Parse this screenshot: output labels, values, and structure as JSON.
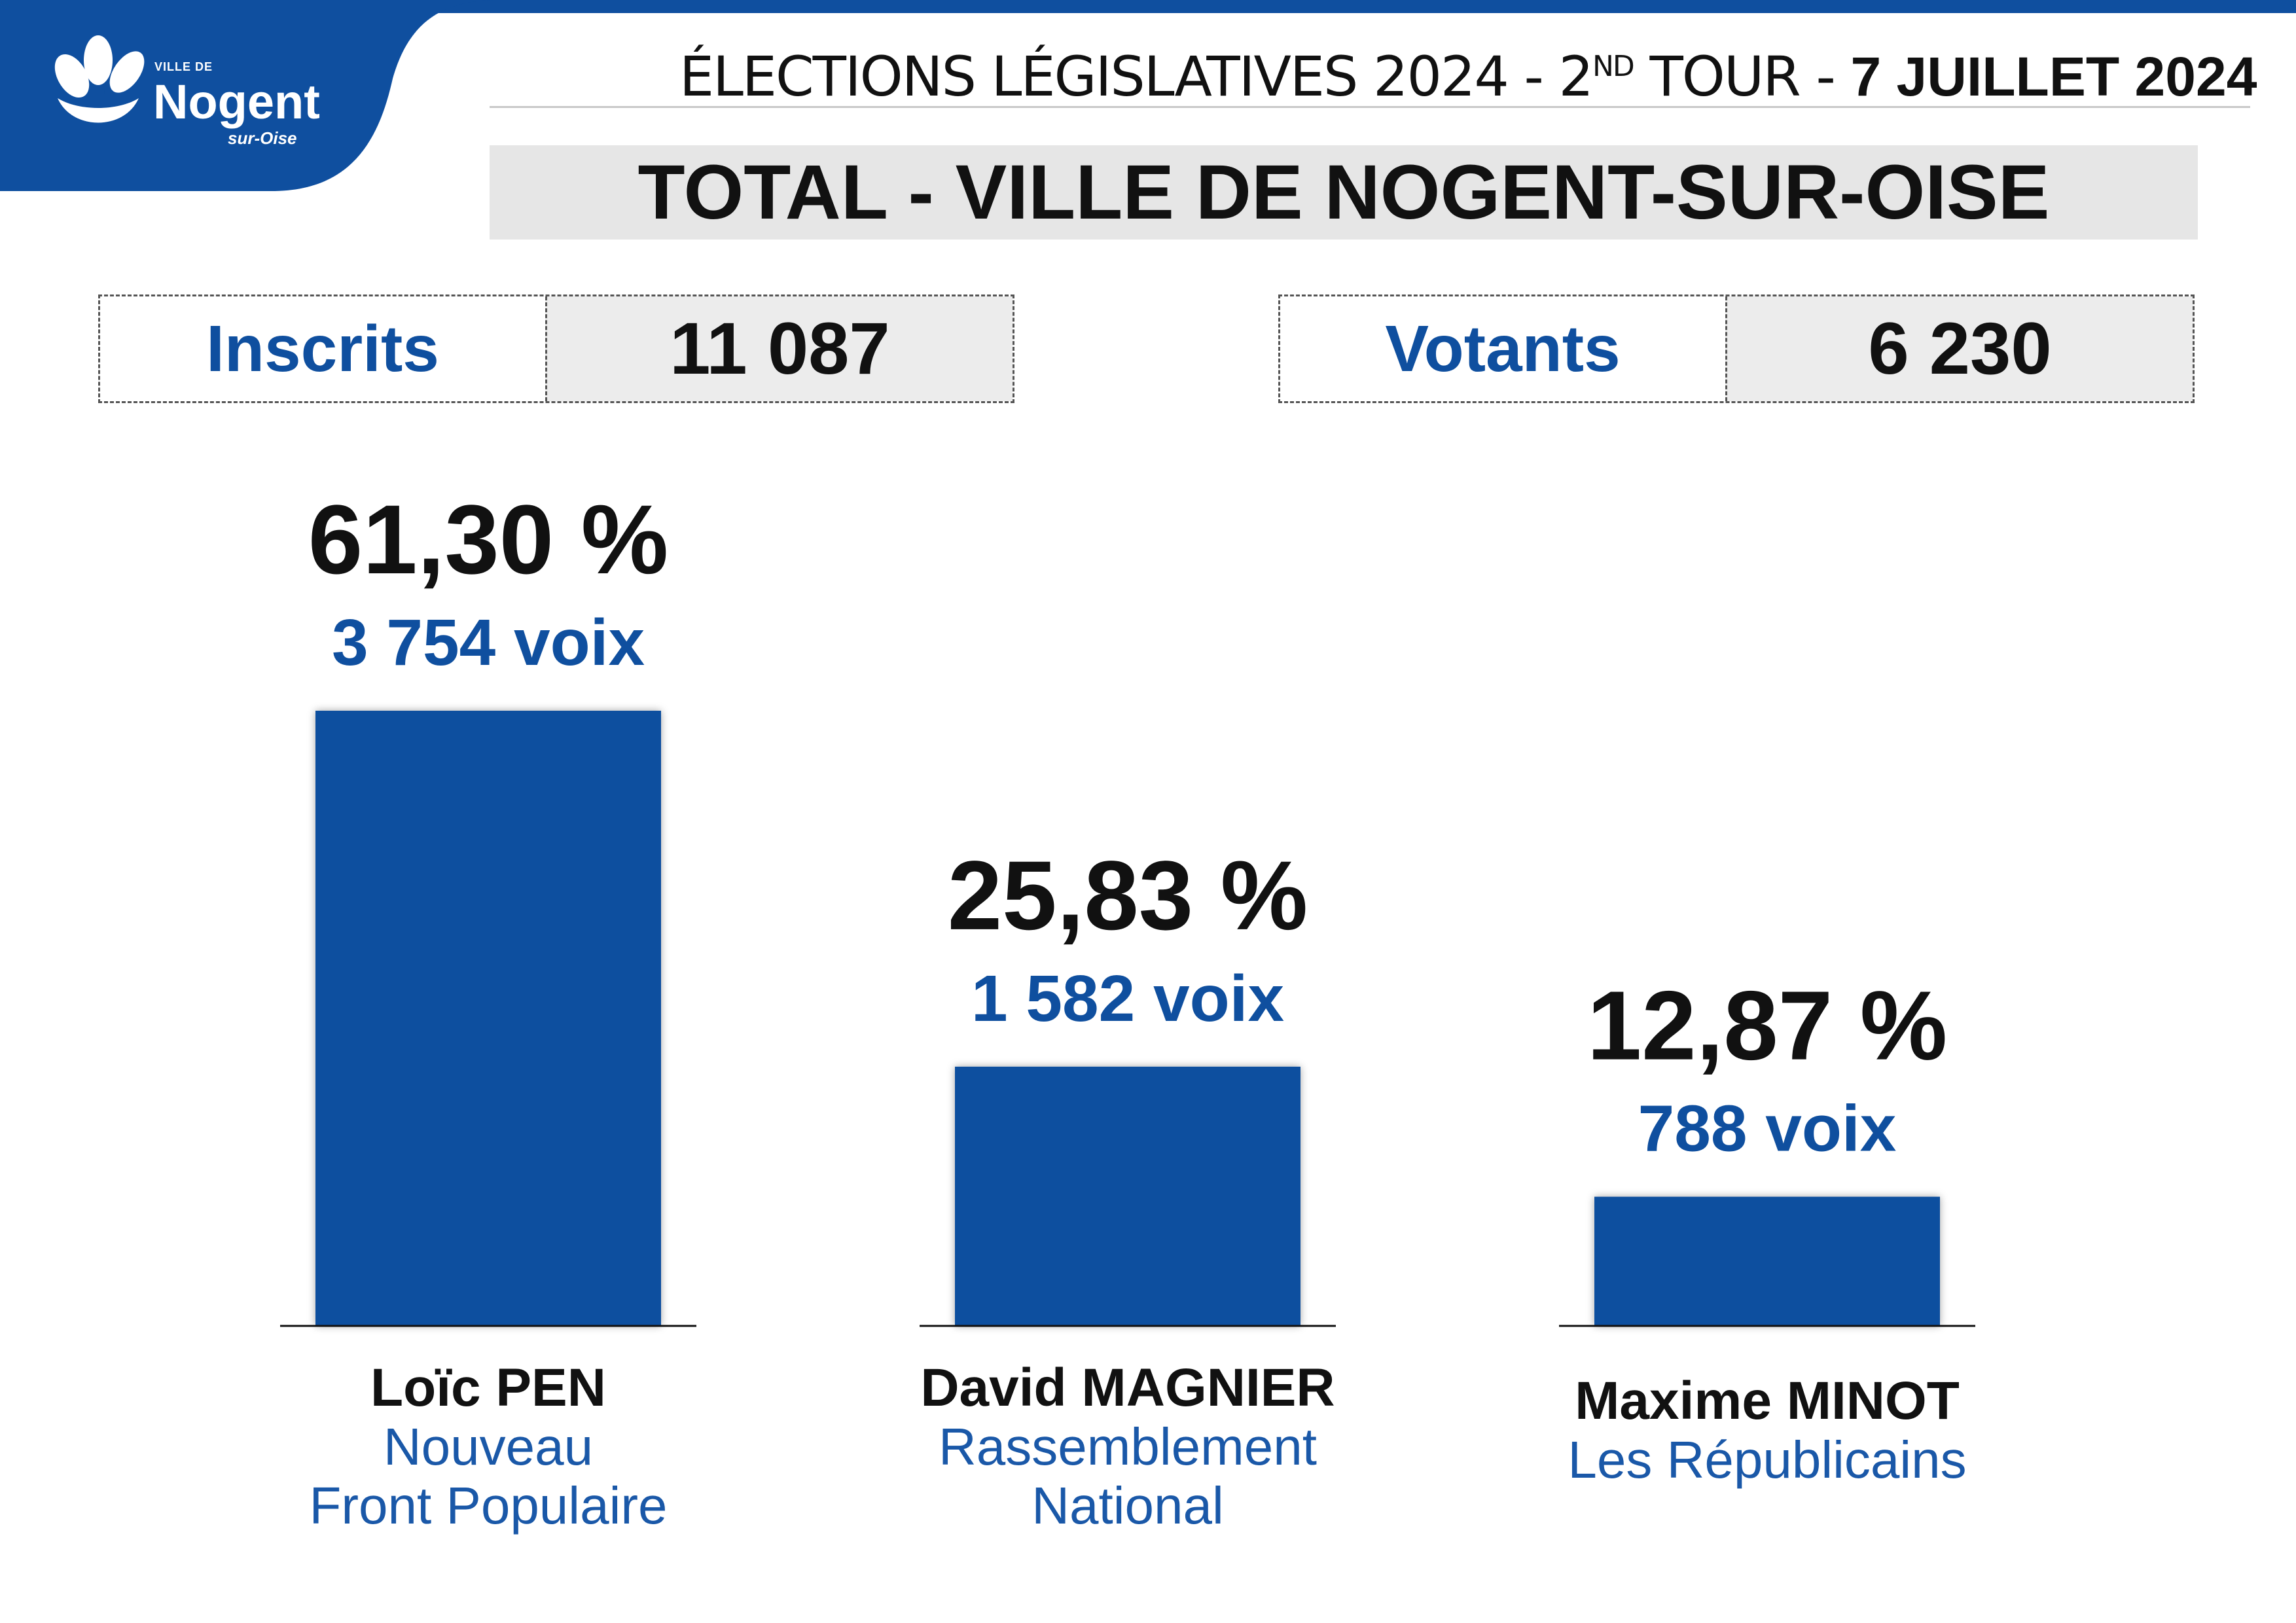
{
  "header": {
    "title_main": "ÉLECTIONS LÉGISLATIVES 2024 - 2",
    "title_sup": "ND",
    "title_mid": " TOUR - ",
    "title_date": "7 JUILLET 2024",
    "banner": "TOTAL - VILLE DE NOGENT-SUR-OISE"
  },
  "logo": {
    "small": "VILLE DE",
    "name": "Nogent",
    "sub": "sur-Oise"
  },
  "stats": {
    "inscrits_label": "Inscrits",
    "inscrits_value": "11 087",
    "votants_label": "Votants",
    "votants_value": "6 230"
  },
  "colors": {
    "brand_blue": "#0f4f9f",
    "text_dark": "#111111"
  },
  "chart_data": {
    "type": "bar",
    "title": "TOTAL - VILLE DE NOGENT-SUR-OISE",
    "categories": [
      "Loïc PEN",
      "David MAGNIER",
      "Maxime MINOT"
    ],
    "values": [
      61.3,
      25.83,
      12.87
    ],
    "ylim": [
      0,
      61.3
    ],
    "bars": [
      {
        "percent": 61.3,
        "percent_label": "61,30 %",
        "votes_label": "3 754 voix",
        "name": "Loïc PEN",
        "party_lines": [
          "Nouveau",
          "Front Populaire"
        ]
      },
      {
        "percent": 25.83,
        "percent_label": "25,83 %",
        "votes_label": "1 582 voix",
        "name": "David MAGNIER",
        "party_lines": [
          "Rassemblement",
          "National"
        ]
      },
      {
        "percent": 12.87,
        "percent_label": "12,87 %",
        "votes_label": "788 voix",
        "name": "Maxime MINOT",
        "party_lines": [
          "Les Républicains"
        ]
      }
    ]
  }
}
